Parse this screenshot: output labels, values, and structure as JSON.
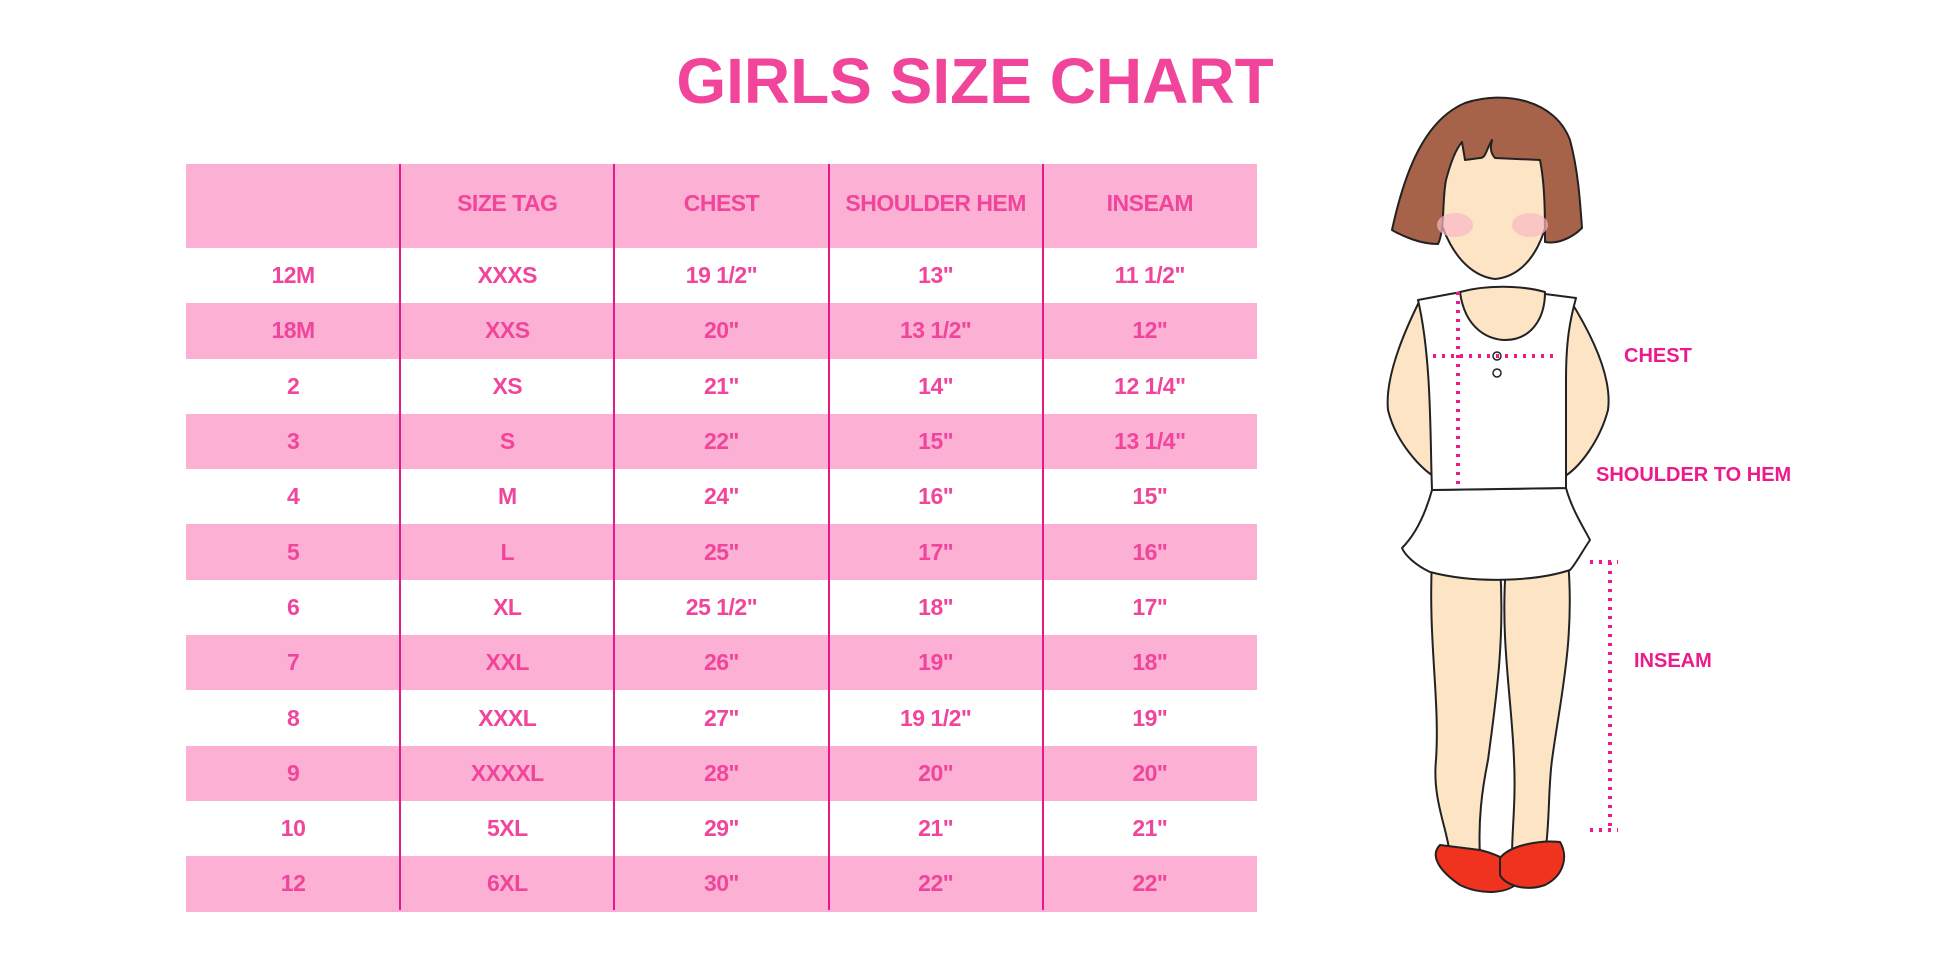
{
  "title": "GIRLS SIZE CHART",
  "table": {
    "headers": [
      "",
      "SIZE TAG",
      "CHEST",
      "SHOULDER HEM",
      "INSEAM"
    ],
    "rows": [
      [
        "12M",
        "XXXS",
        "19 1/2\"",
        "13\"",
        "11 1/2\""
      ],
      [
        "18M",
        "XXS",
        "20\"",
        "13 1/2\"",
        "12\""
      ],
      [
        "2",
        "XS",
        "21\"",
        "14\"",
        "12 1/4\""
      ],
      [
        "3",
        "S",
        "22\"",
        "15\"",
        "13 1/4\""
      ],
      [
        "4",
        "M",
        "24\"",
        "16\"",
        "15\""
      ],
      [
        "5",
        "L",
        "25\"",
        "17\"",
        "16\""
      ],
      [
        "6",
        "XL",
        "25 1/2\"",
        "18\"",
        "17\""
      ],
      [
        "7",
        "XXL",
        "26\"",
        "19\"",
        "18\""
      ],
      [
        "8",
        "XXXL",
        "27\"",
        "19 1/2\"",
        "19\""
      ],
      [
        "9",
        "XXXXL",
        "28\"",
        "20\"",
        "20\""
      ],
      [
        "10",
        "5XL",
        "29\"",
        "21\"",
        "21\""
      ],
      [
        "12",
        "6XL",
        "30\"",
        "22\"",
        "22\""
      ]
    ]
  },
  "figure": {
    "labels": {
      "chest": "CHEST",
      "shoulder": "SHOULDER TO HEM",
      "inseam": "INSEAM"
    }
  },
  "colors": {
    "text": "#f0459b",
    "band": "#fbb0d4",
    "divider": "#e6198c",
    "measure": "#ec1a8c"
  }
}
